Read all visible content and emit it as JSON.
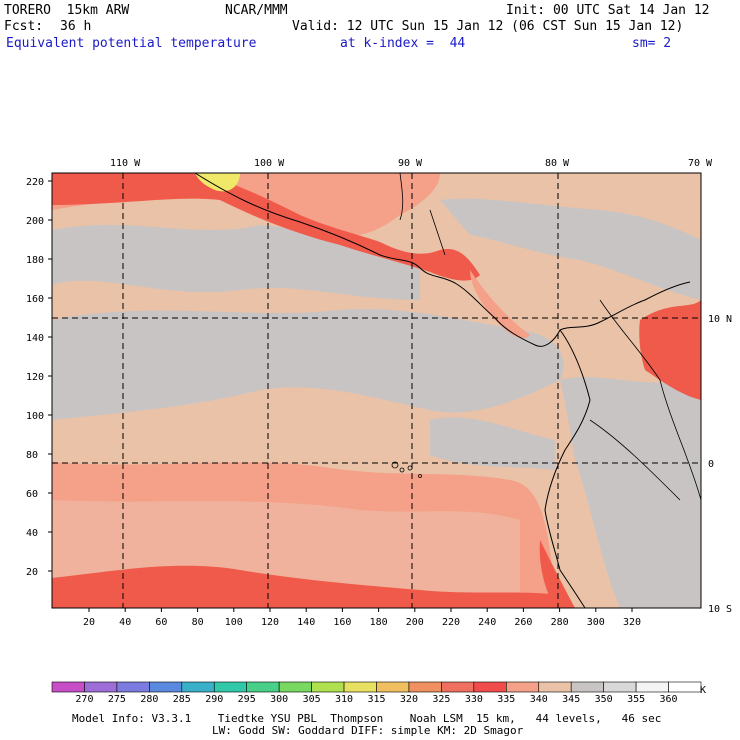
{
  "header": {
    "model": "TORERO  15km ARW",
    "center": "NCAR/MMM",
    "init": "Init: 00 UTC Sat 14 Jan 12",
    "fcst_label": "Fcst:",
    "fcst_value": "36 h",
    "valid": "Valid: 12 UTC Sun 15 Jan 12 (06 CST Sun 15 Jan 12)",
    "field": "Equivalent potential temperature",
    "level": "at k-index =  44",
    "smoothing": "sm= 2"
  },
  "map": {
    "top_lon_labels": [
      "110 W",
      "100 W",
      "90 W",
      "80 W",
      "70 W"
    ],
    "right_lat_labels": [
      "10 N",
      "0",
      "10 S"
    ],
    "y_axis_ticks": [
      "220",
      "200",
      "180",
      "160",
      "140",
      "120",
      "100",
      "80",
      "60",
      "40",
      "20"
    ],
    "x_axis_ticks": [
      "20",
      "40",
      "60",
      "80",
      "100",
      "120",
      "140",
      "160",
      "180",
      "200",
      "220",
      "240",
      "260",
      "280",
      "300",
      "320"
    ],
    "colors": {
      "ocean_main": "#e9c2a7",
      "gray_band": "#c8c4c4",
      "salmon": "#f5a088",
      "red": "#f05a4b",
      "yellow_hot": "#f0e868",
      "white": "#f5f5f5"
    }
  },
  "colorbar": {
    "unit": "K",
    "labels": [
      "270",
      "275",
      "280",
      "285",
      "290",
      "295",
      "300",
      "305",
      "310",
      "315",
      "320",
      "325",
      "330",
      "335",
      "340",
      "345",
      "350",
      "355",
      "360"
    ],
    "colors": [
      "#c84ec8",
      "#9e6ed8",
      "#7b7be0",
      "#5a8ae0",
      "#3ab0c8",
      "#30c8a8",
      "#48d088",
      "#78d860",
      "#b0e050",
      "#e8e060",
      "#f0c060",
      "#f09060",
      "#f07060",
      "#f04c4c",
      "#f5a088",
      "#e9c2a7",
      "#c8c4c4",
      "#d8d8d8",
      "#f4f4f4",
      "#ffffff"
    ]
  },
  "footer": {
    "line1": "Model Info: V3.3.1    Tiedtke YSU PBL  Thompson    Noah LSM  15 km,   44 levels,   46 sec",
    "line2": "LW: Godd SW: Goddard DIFF: simple KM: 2D Smagor"
  }
}
